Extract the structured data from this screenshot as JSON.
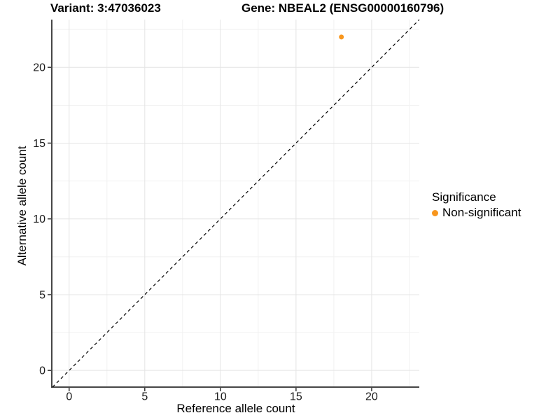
{
  "chart_data": {
    "type": "scatter",
    "titles": {
      "left": "Variant: 3:47036023",
      "right": "Gene: NBEAL2 (ENSG00000160796)"
    },
    "xlabel": "Reference allele count",
    "ylabel": "Alternative allele count",
    "xlim": [
      -1.1,
      23.15
    ],
    "ylim": [
      -1.1,
      23.15
    ],
    "x_ticks": [
      0,
      5,
      10,
      15,
      20
    ],
    "y_ticks": [
      0,
      5,
      10,
      15,
      20
    ],
    "x_minor_ticks": [
      2.5,
      7.5,
      12.5,
      17.5,
      22.5
    ],
    "y_minor_ticks": [
      2.5,
      7.5,
      12.5,
      17.5,
      22.5
    ],
    "grid": "major+minor",
    "series": [
      {
        "name": "Non-significant",
        "color": "#F8961D",
        "marker": "circle",
        "size": 3.5,
        "points": [
          {
            "x": 18,
            "y": 22
          }
        ]
      }
    ],
    "reference_line": {
      "type": "identity",
      "slope": 1,
      "intercept": 0,
      "style": "dashed",
      "color": "#000000"
    },
    "legend": {
      "title": "Significance",
      "position": "right",
      "items": [
        {
          "label": "Non-significant",
          "color": "#F8961D"
        }
      ]
    },
    "colors": {
      "background": "#FFFFFF",
      "grid_major": "#E4E4E4",
      "grid_minor": "#F1F1F1",
      "axis_line": "#464646",
      "tick_mark": "#333333",
      "tick_label": "#1A1A1A",
      "point": "#F8961D"
    }
  }
}
